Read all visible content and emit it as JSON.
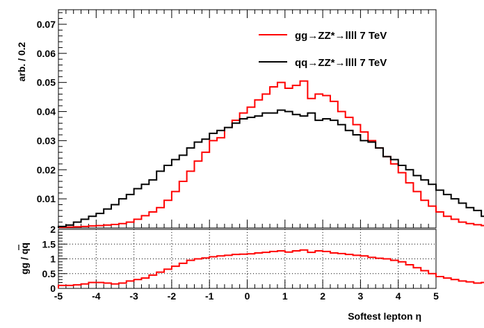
{
  "chart_data": [
    {
      "type": "line",
      "step": true,
      "panel": "main",
      "ylabel": "arb. / 0.2",
      "ylim": [
        0,
        0.075
      ],
      "xlim": [
        -5,
        5
      ],
      "yticks": [
        0.01,
        0.02,
        0.03,
        0.04,
        0.05,
        0.06,
        0.07
      ],
      "ytick_labels": [
        "0.01",
        "0.02",
        "0.03",
        "0.04",
        "0.05",
        "0.06",
        "0.07"
      ],
      "legend_position": "top-right",
      "bin_edges_start": -5,
      "bin_width": 0.2,
      "series": [
        {
          "name": "gg→ZZ*→llll 7 TeV",
          "color": "#ff0000",
          "values": [
            0.0002,
            0.0003,
            0.0004,
            0.0005,
            0.0007,
            0.0008,
            0.001,
            0.0012,
            0.0015,
            0.002,
            0.003,
            0.0042,
            0.0055,
            0.007,
            0.0095,
            0.0125,
            0.016,
            0.0195,
            0.023,
            0.026,
            0.03,
            0.031,
            0.0345,
            0.037,
            0.0395,
            0.0415,
            0.044,
            0.046,
            0.0485,
            0.05,
            0.048,
            0.049,
            0.0505,
            0.0445,
            0.046,
            0.0455,
            0.0435,
            0.04,
            0.038,
            0.0355,
            0.033,
            0.03,
            0.0275,
            0.0245,
            0.022,
            0.019,
            0.0155,
            0.0125,
            0.0095,
            0.0075,
            0.0055,
            0.004,
            0.003,
            0.002,
            0.0015,
            0.0011,
            0.0008,
            0.0006,
            0.0004,
            0.0003
          ]
        },
        {
          "name": "qq→ZZ*→llll 7 TeV",
          "color": "#000000",
          "values": [
            0.0005,
            0.001,
            0.002,
            0.003,
            0.004,
            0.005,
            0.0065,
            0.008,
            0.01,
            0.0115,
            0.0135,
            0.015,
            0.0165,
            0.0195,
            0.0215,
            0.0235,
            0.025,
            0.0275,
            0.0295,
            0.0305,
            0.0325,
            0.0335,
            0.0345,
            0.036,
            0.0375,
            0.038,
            0.0385,
            0.0395,
            0.0395,
            0.0405,
            0.04,
            0.039,
            0.0385,
            0.0395,
            0.037,
            0.0375,
            0.037,
            0.0355,
            0.0335,
            0.032,
            0.03,
            0.0295,
            0.0275,
            0.0245,
            0.0235,
            0.0215,
            0.02,
            0.018,
            0.0165,
            0.015,
            0.013,
            0.0115,
            0.01,
            0.0085,
            0.007,
            0.006,
            0.004,
            0.003,
            0.002,
            0.001
          ]
        }
      ]
    },
    {
      "type": "line",
      "step": true,
      "panel": "ratio",
      "ylabel": "gg / qq",
      "xlabel": "Softest lepton η",
      "xlim": [
        -5,
        5
      ],
      "ylim": [
        0,
        2
      ],
      "grid": true,
      "xticks": [
        -5,
        -4,
        -3,
        -2,
        -1,
        0,
        1,
        2,
        3,
        4,
        5
      ],
      "xtick_labels": [
        "-5",
        "-4",
        "-3",
        "-2",
        "-1",
        "0",
        "1",
        "2",
        "3",
        "4",
        "5"
      ],
      "yticks": [
        0,
        0.5,
        1,
        1.5,
        2
      ],
      "ytick_labels": [
        "0",
        "0.5",
        "1",
        "1.5",
        "2"
      ],
      "bin_edges_start": -5,
      "bin_width": 0.2,
      "series": [
        {
          "color": "#ff0000",
          "values": [
            0.1,
            0.1,
            0.12,
            0.15,
            0.2,
            0.2,
            0.18,
            0.15,
            0.18,
            0.25,
            0.3,
            0.35,
            0.45,
            0.55,
            0.65,
            0.75,
            0.85,
            0.95,
            1.0,
            1.03,
            1.07,
            1.1,
            1.12,
            1.15,
            1.16,
            1.17,
            1.2,
            1.22,
            1.25,
            1.27,
            1.23,
            1.27,
            1.3,
            1.22,
            1.27,
            1.25,
            1.2,
            1.18,
            1.15,
            1.12,
            1.1,
            1.05,
            1.02,
            1.0,
            0.95,
            0.9,
            0.8,
            0.7,
            0.6,
            0.5,
            0.4,
            0.35,
            0.3,
            0.25,
            0.22,
            0.18,
            0.2,
            0.2,
            0.15,
            0.12
          ]
        }
      ]
    }
  ]
}
